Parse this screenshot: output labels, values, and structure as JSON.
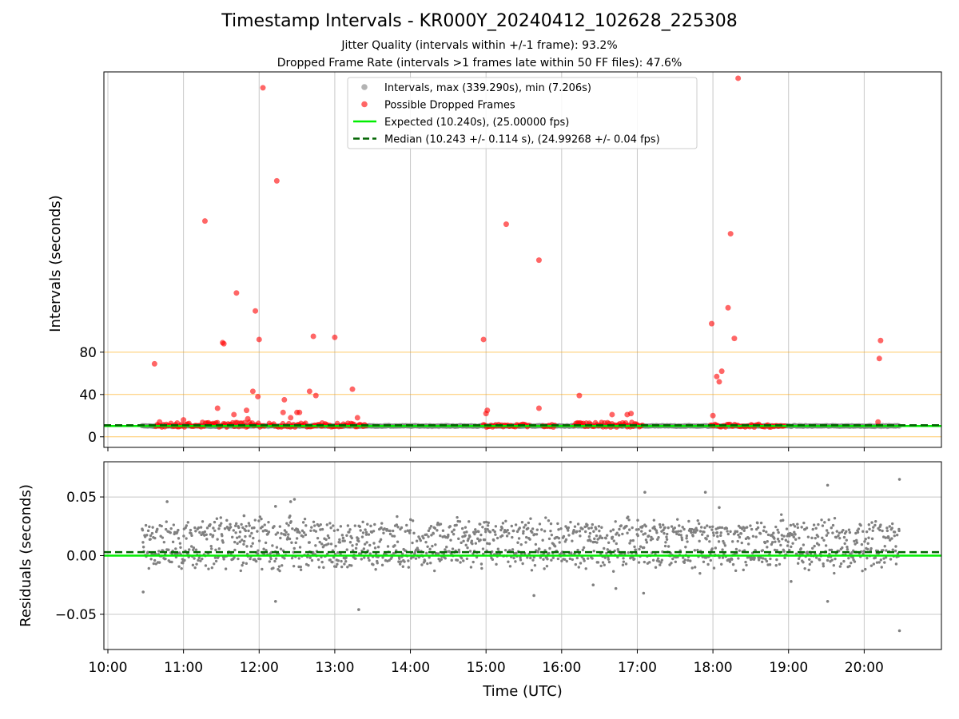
{
  "header": {
    "title": "Timestamp Intervals - KR000Y_20240412_102628_225308",
    "subtitle_1": "Jitter Quality (intervals within +/-1 frame): 93.2%",
    "subtitle_2": "Dropped Frame Rate (intervals >1 frames late within 50 FF files): 47.6%"
  },
  "colors": {
    "intervals": "#808080",
    "dropped": "#ff0000",
    "expected": "#00ee00",
    "median": "#006400",
    "reference_lines": "#ffa500",
    "grid": "#c8c8c8"
  },
  "chart_data": [
    {
      "type": "scatter",
      "panel": "intervals",
      "xlabel": "",
      "ylabel": "Intervals (seconds)",
      "x_range": [
        "10:00",
        "21:00"
      ],
      "y_range": [
        -10,
        345
      ],
      "y_ticks": [
        0,
        40,
        80
      ],
      "reference_lines": [
        0,
        40,
        80
      ],
      "grid": true,
      "legend_position": "top-center",
      "legend": [
        {
          "label": "Intervals, max (339.290s), min (7.206s)",
          "kind": "marker",
          "color": "#808080"
        },
        {
          "label": "Possible Dropped Frames",
          "kind": "marker",
          "color": "#ff0000"
        },
        {
          "label": "Expected (10.240s), (25.00000 fps)",
          "kind": "line",
          "color": "#00ee00"
        },
        {
          "label": "Median (10.243 +/- 0.114 s), (24.99268 +/- 0.04 fps)",
          "kind": "dashed",
          "color": "#006400"
        }
      ],
      "expected_interval": 10.24,
      "median_interval": 10.243,
      "interval_series": {
        "name": "Intervals",
        "typical_value": 10.24,
        "segments": [
          [
            "10:27",
            "13:25"
          ],
          [
            "13:25",
            "18:20"
          ],
          [
            "18:20",
            "20:28"
          ]
        ]
      },
      "dropped_points": [
        {
          "x": "10:37",
          "y": 69
        },
        {
          "x": "10:41",
          "y": 14
        },
        {
          "x": "10:55",
          "y": 13
        },
        {
          "x": "11:00",
          "y": 16
        },
        {
          "x": "11:17",
          "y": 204
        },
        {
          "x": "11:27",
          "y": 27
        },
        {
          "x": "11:31",
          "y": 89
        },
        {
          "x": "11:32",
          "y": 88
        },
        {
          "x": "11:40",
          "y": 21
        },
        {
          "x": "11:42",
          "y": 136
        },
        {
          "x": "11:50",
          "y": 25
        },
        {
          "x": "11:51",
          "y": 17
        },
        {
          "x": "11:55",
          "y": 43
        },
        {
          "x": "11:57",
          "y": 119
        },
        {
          "x": "11:59",
          "y": 38
        },
        {
          "x": "12:00",
          "y": 92
        },
        {
          "x": "12:03",
          "y": 330
        },
        {
          "x": "12:14",
          "y": 242
        },
        {
          "x": "12:20",
          "y": 35
        },
        {
          "x": "12:19",
          "y": 23
        },
        {
          "x": "12:25",
          "y": 18
        },
        {
          "x": "12:30",
          "y": 23
        },
        {
          "x": "12:32",
          "y": 23
        },
        {
          "x": "12:40",
          "y": 43
        },
        {
          "x": "12:43",
          "y": 95
        },
        {
          "x": "12:45",
          "y": 39
        },
        {
          "x": "12:50",
          "y": 13
        },
        {
          "x": "13:00",
          "y": 94
        },
        {
          "x": "13:14",
          "y": 45
        },
        {
          "x": "13:18",
          "y": 18
        },
        {
          "x": "14:58",
          "y": 92
        },
        {
          "x": "15:01",
          "y": 25
        },
        {
          "x": "15:00",
          "y": 22
        },
        {
          "x": "15:16",
          "y": 201
        },
        {
          "x": "15:42",
          "y": 27
        },
        {
          "x": "15:42",
          "y": 167
        },
        {
          "x": "16:14",
          "y": 39
        },
        {
          "x": "16:40",
          "y": 21
        },
        {
          "x": "16:52",
          "y": 21
        },
        {
          "x": "16:55",
          "y": 22
        },
        {
          "x": "17:59",
          "y": 107
        },
        {
          "x": "18:00",
          "y": 20
        },
        {
          "x": "18:03",
          "y": 57
        },
        {
          "x": "18:05",
          "y": 52
        },
        {
          "x": "18:07",
          "y": 62
        },
        {
          "x": "18:12",
          "y": 122
        },
        {
          "x": "18:14",
          "y": 192
        },
        {
          "x": "18:17",
          "y": 93
        },
        {
          "x": "18:20",
          "y": 339
        },
        {
          "x": "20:12",
          "y": 74
        },
        {
          "x": "20:13",
          "y": 91
        },
        {
          "x": "20:11",
          "y": 14
        }
      ],
      "dropped_clusters": [
        {
          "from": "10:38",
          "to": "11:15",
          "y_low": 9,
          "y_high": 13
        },
        {
          "from": "11:15",
          "to": "12:05",
          "y_low": 9,
          "y_high": 14
        },
        {
          "from": "12:08",
          "to": "13:25",
          "y_low": 9,
          "y_high": 13
        },
        {
          "from": "14:58",
          "to": "15:35",
          "y_low": 9,
          "y_high": 12
        },
        {
          "from": "15:45",
          "to": "15:55",
          "y_low": 9,
          "y_high": 12
        },
        {
          "from": "16:10",
          "to": "17:05",
          "y_low": 9,
          "y_high": 14
        },
        {
          "from": "17:58",
          "to": "18:58",
          "y_low": 9,
          "y_high": 12
        }
      ]
    },
    {
      "type": "scatter",
      "panel": "residuals",
      "xlabel": "Time (UTC)",
      "ylabel": "Residuals (seconds)",
      "x_range": [
        "10:00",
        "21:00"
      ],
      "x_ticks": [
        "10:00",
        "11:00",
        "12:00",
        "13:00",
        "14:00",
        "15:00",
        "16:00",
        "17:00",
        "18:00",
        "19:00",
        "20:00"
      ],
      "y_range": [
        -0.08,
        0.08
      ],
      "y_ticks": [
        0.05,
        0.0,
        -0.05
      ],
      "y_tick_labels": [
        "0.05",
        "0.00",
        "−0.05"
      ],
      "grid": true,
      "expected_residual": 0.0,
      "median_residual": 0.003,
      "residual_series": {
        "name": "Residuals",
        "bands": [
          0.02,
          0.0
        ],
        "spread": 0.012,
        "segments": [
          [
            "10:27",
            "13:25"
          ],
          [
            "13:25",
            "18:20"
          ],
          [
            "18:20",
            "20:28"
          ]
        ]
      },
      "outliers": [
        {
          "x": "10:28",
          "y": -0.031
        },
        {
          "x": "10:47",
          "y": 0.046
        },
        {
          "x": "11:48",
          "y": 0.034
        },
        {
          "x": "12:13",
          "y": -0.039
        },
        {
          "x": "12:13",
          "y": 0.042
        },
        {
          "x": "12:25",
          "y": 0.046
        },
        {
          "x": "12:28",
          "y": 0.048
        },
        {
          "x": "13:19",
          "y": -0.046
        },
        {
          "x": "15:38",
          "y": -0.034
        },
        {
          "x": "16:25",
          "y": -0.025
        },
        {
          "x": "16:43",
          "y": -0.028
        },
        {
          "x": "17:06",
          "y": 0.054
        },
        {
          "x": "17:05",
          "y": -0.032
        },
        {
          "x": "17:54",
          "y": 0.054
        },
        {
          "x": "18:05",
          "y": 0.041
        },
        {
          "x": "19:02",
          "y": -0.022
        },
        {
          "x": "19:31",
          "y": 0.06
        },
        {
          "x": "19:31",
          "y": -0.039
        },
        {
          "x": "20:28",
          "y": 0.065
        },
        {
          "x": "20:28",
          "y": -0.064
        }
      ]
    }
  ]
}
